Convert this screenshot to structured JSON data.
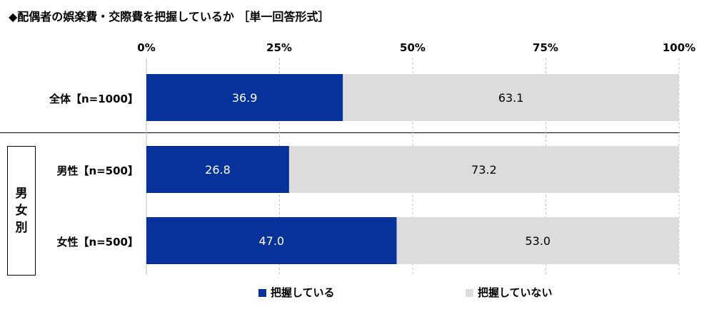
{
  "title": "◆配偶者の娯楽費・交際費を把握しているか ［単一回答形式］",
  "group_label": "男女別",
  "colors": {
    "series1": "#07329a",
    "series2": "#dcdcdc",
    "grid": "#bfbfbf"
  },
  "chart_data": {
    "type": "bar",
    "orientation": "horizontal",
    "stacked": true,
    "title": "◆配偶者の娯楽費・交際費を把握しているか ［単一回答形式］",
    "categories": [
      "全体【n=1000】",
      "男性【n=500】",
      "女性【n=500】"
    ],
    "x_ticks": [
      "0%",
      "25%",
      "50%",
      "75%",
      "100%"
    ],
    "xlim": [
      0,
      100
    ],
    "grid": true,
    "legend_position": "bottom",
    "series": [
      {
        "name": "把握している",
        "values": [
          36.9,
          26.8,
          47.0
        ],
        "labels": [
          "36.9",
          "26.8",
          "47.0"
        ]
      },
      {
        "name": "把握していない",
        "values": [
          63.1,
          73.2,
          53.0
        ],
        "labels": [
          "63.1",
          "73.2",
          "53.0"
        ]
      }
    ]
  }
}
